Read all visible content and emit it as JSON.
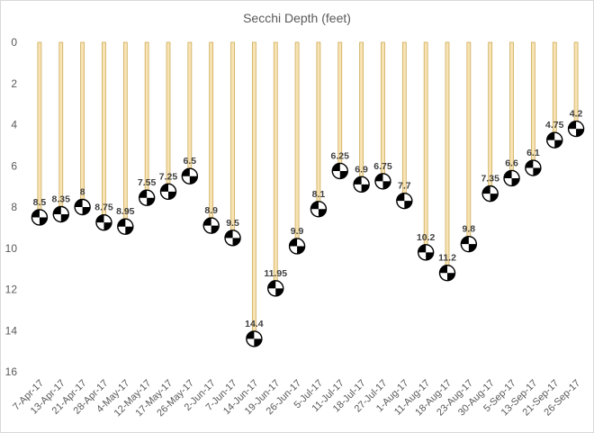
{
  "chart_data": {
    "type": "bar",
    "title": "Secchi Depth (feet)",
    "xlabel": "",
    "ylabel": "",
    "ylim": [
      0,
      16
    ],
    "y_reversed": true,
    "y_ticks": [
      0,
      2,
      4,
      6,
      8,
      10,
      12,
      14,
      16
    ],
    "grid": false,
    "legend": "none",
    "marker": "secchi-disk-icon",
    "colors": {
      "bar_fill": "#f7e3b3",
      "bar_stroke": "#c8a24a",
      "marker_dark": "#000000",
      "marker_light": "#ffffff"
    },
    "categories": [
      "7-Apr-17",
      "13-Apr-17",
      "21-Apr-17",
      "28-Apr-17",
      "4-May-17",
      "12-May-17",
      "17-May-17",
      "26-May-17",
      "2-Jun-17",
      "7-Jun-17",
      "14-Jun-17",
      "19-Jun-17",
      "26-Jun-17",
      "5-Jul-17",
      "11-Jul-17",
      "18-Jul-17",
      "27-Jul-17",
      "1-Aug-17",
      "11-Aug-17",
      "18-Aug-17",
      "23-Aug-17",
      "30-Aug-17",
      "5-Sep-17",
      "13-Sep-17",
      "21-Sep-17",
      "26-Sep-17"
    ],
    "values": [
      8.5,
      8.35,
      8,
      8.75,
      8.95,
      7.55,
      7.25,
      6.5,
      8.9,
      9.5,
      14.4,
      11.95,
      9.9,
      8.1,
      6.25,
      6.9,
      6.75,
      7.7,
      10.2,
      11.2,
      9.8,
      7.35,
      6.6,
      6.1,
      4.75,
      4.2
    ],
    "data_labels": [
      "8.5",
      "8.35",
      "8",
      "8.75",
      "8.95",
      "7.55",
      "7.25",
      "6.5",
      "8.9",
      "9.5",
      "14.4",
      "11.95",
      "9.9",
      "8.1",
      "6.25",
      "6.9",
      "6.75",
      "7.7",
      "10.2",
      "11.2",
      "9.8",
      "7.35",
      "6.6",
      "6.1",
      "4.75",
      "4.2"
    ]
  }
}
